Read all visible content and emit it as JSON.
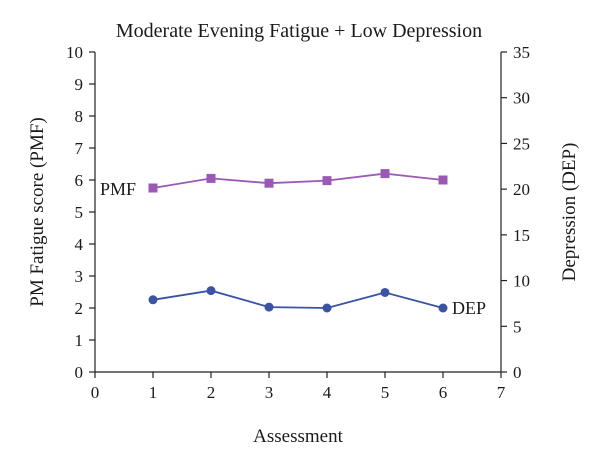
{
  "chart_data": {
    "type": "line",
    "title": "Moderate Evening Fatigue + Low Depression",
    "xlabel": "Assessment",
    "ylabel": "PM Fatigue score (PMF)",
    "y2label": "Depression (DEP)",
    "xlim": [
      0,
      7
    ],
    "ylim": [
      0,
      10
    ],
    "y2lim": [
      0,
      35
    ],
    "xticks": [
      "0",
      "1",
      "2",
      "3",
      "4",
      "5",
      "6",
      "7"
    ],
    "yticks": [
      "0",
      "1",
      "2",
      "3",
      "4",
      "5",
      "6",
      "7",
      "8",
      "9",
      "10"
    ],
    "y2ticks": [
      "0",
      "5",
      "10",
      "15",
      "20",
      "25",
      "30",
      "35"
    ],
    "grid": false,
    "series": [
      {
        "name": "PMF",
        "axis": "left",
        "marker": "square",
        "color": "#9b59b6",
        "x": [
          1,
          2,
          3,
          4,
          5,
          6
        ],
        "values": [
          5.75,
          6.05,
          5.9,
          5.98,
          6.2,
          6.0
        ]
      },
      {
        "name": "DEP",
        "axis": "right",
        "marker": "circle",
        "color": "#3a53a4",
        "x": [
          1,
          2,
          3,
          4,
          5,
          6
        ],
        "values": [
          7.9,
          8.9,
          7.1,
          7.0,
          8.7,
          7.0
        ]
      }
    ]
  }
}
